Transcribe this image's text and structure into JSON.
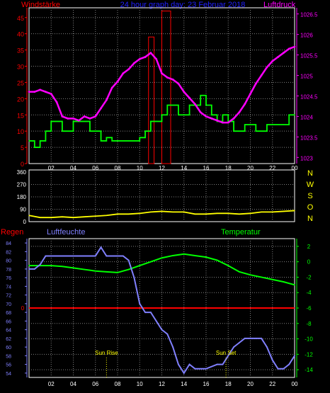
{
  "header": {
    "left_label": "Windstärke",
    "center_label": "24 hour graph day: 23 Februar 2018",
    "right_label": "Luftdruck"
  },
  "colors": {
    "grid": "#808080",
    "panel_border": "#ffffff",
    "pressure": "#ff00ff",
    "pressure_axis": "#ff00ff",
    "wind": "#00ff00",
    "wind_axis": "#ff0000",
    "gust_box": "#ff0000",
    "direction": "#ffff00",
    "humidity": "#8080ff",
    "temperature": "#00ff00",
    "rain": "#ff0000",
    "sun_marker": "#ffff00",
    "axis_text": "#ffffff"
  },
  "chart_data": [
    {
      "type": "line",
      "title": "24 hour graph day: 23 Februar 2018",
      "x_ticks": [
        "02",
        "04",
        "06",
        "08",
        "10",
        "12",
        "14",
        "16",
        "18",
        "20",
        "22",
        "00"
      ],
      "x_range_hours": [
        0,
        24
      ],
      "grid": true,
      "y_left": {
        "label": "Windstärke",
        "ticks": [
          "0",
          "5",
          "10",
          "15",
          "20",
          "25",
          "30",
          "35",
          "40",
          "45"
        ],
        "range": [
          0,
          48
        ]
      },
      "y_right": {
        "label": "Luftdruck",
        "ticks": [
          "1023",
          "1023.5",
          "1024",
          "1024.5",
          "1025",
          "1025.5",
          "1026",
          "1026.5"
        ],
        "range": [
          1022.85,
          1026.65
        ]
      },
      "series": [
        {
          "name": "Luftdruck",
          "axis": "right",
          "x": [
            0,
            0.5,
            1,
            1.5,
            2,
            2.5,
            3,
            3.5,
            4,
            4.5,
            5,
            5.5,
            6,
            6.5,
            7,
            7.5,
            8,
            8.5,
            9,
            9.5,
            10,
            10.5,
            11,
            11.5,
            12,
            12.5,
            13,
            13.5,
            14,
            14.5,
            15,
            15.5,
            16,
            16.5,
            17,
            17.5,
            18,
            18.5,
            19,
            19.5,
            20,
            20.5,
            21,
            21.5,
            22,
            22.5,
            23,
            23.5,
            24
          ],
          "values": [
            1024.6,
            1024.6,
            1024.65,
            1024.6,
            1024.55,
            1024.35,
            1024.0,
            1023.95,
            1023.95,
            1023.9,
            1024.0,
            1023.95,
            1024.0,
            1024.2,
            1024.4,
            1024.7,
            1024.85,
            1025.05,
            1025.15,
            1025.3,
            1025.4,
            1025.45,
            1025.55,
            1025.4,
            1025.05,
            1024.95,
            1024.9,
            1024.8,
            1024.6,
            1024.45,
            1024.3,
            1024.1,
            1024.0,
            1023.95,
            1023.9,
            1023.85,
            1023.85,
            1023.95,
            1024.1,
            1024.3,
            1024.55,
            1024.8,
            1025.0,
            1025.2,
            1025.35,
            1025.45,
            1025.55,
            1025.65,
            1025.7
          ]
        },
        {
          "name": "Windstärke",
          "axis": "left",
          "step": true,
          "x": [
            0,
            0.5,
            1,
            1.5,
            2,
            2.5,
            3,
            3.5,
            4,
            4.5,
            5,
            5.5,
            6,
            6.5,
            7,
            7.5,
            8,
            8.5,
            9,
            9.5,
            10,
            10.5,
            11,
            11.5,
            12,
            12.5,
            13,
            13.5,
            14,
            14.5,
            15,
            15.5,
            16,
            16.5,
            17,
            17.5,
            18,
            18.5,
            19,
            19.5,
            20,
            20.5,
            21,
            21.5,
            22,
            22.5,
            23,
            23.5,
            24
          ],
          "values": [
            7,
            5,
            7,
            10,
            13,
            13,
            10,
            10,
            13,
            13,
            13,
            10,
            10,
            7,
            8,
            7,
            7,
            7,
            7,
            7,
            8,
            10,
            13,
            13,
            15,
            18,
            18,
            15,
            15,
            18,
            18,
            21,
            18,
            15,
            13,
            15,
            13,
            10,
            10,
            12,
            12,
            10,
            10,
            12,
            12,
            12,
            12,
            15,
            15
          ]
        },
        {
          "name": "Böen",
          "axis": "left",
          "type": "bar",
          "x": [
            10.8,
            12.0
          ],
          "width_hours": [
            0.5,
            0.8
          ],
          "values": [
            39,
            47
          ]
        }
      ]
    },
    {
      "type": "line",
      "y_left": {
        "ticks": [
          "0",
          "90",
          "180",
          "270",
          "360"
        ],
        "range": [
          0,
          360
        ]
      },
      "y_right_labels": [
        "N",
        "W",
        "S",
        "O",
        "N"
      ],
      "x_ticks": [
        "02",
        "04",
        "06",
        "08",
        "10",
        "12",
        "14",
        "16",
        "18",
        "20",
        "22",
        "00"
      ],
      "grid": true,
      "series": [
        {
          "name": "Windrichtung",
          "x": [
            0,
            1,
            2,
            3,
            4,
            5,
            6,
            7,
            8,
            9,
            10,
            11,
            12,
            13,
            14,
            15,
            16,
            17,
            18,
            19,
            20,
            21,
            22,
            23,
            24
          ],
          "values": [
            45,
            30,
            30,
            35,
            30,
            35,
            40,
            45,
            55,
            55,
            60,
            70,
            75,
            70,
            70,
            55,
            55,
            60,
            60,
            55,
            60,
            70,
            70,
            75,
            80
          ]
        }
      ]
    },
    {
      "type": "line",
      "y_left": {
        "label": "Luftfeuchte",
        "ticks": [
          "54",
          "56",
          "58",
          "60",
          "62",
          "64",
          "66",
          "68",
          "70",
          "72",
          "74",
          "76",
          "78",
          "80",
          "82",
          "84"
        ],
        "range": [
          53,
          85
        ]
      },
      "y_right": {
        "label": "Temperatur",
        "ticks": [
          "2",
          "0",
          "-2",
          "-4",
          "-6",
          "-8",
          "-10",
          "-12",
          "-14"
        ],
        "range": [
          -15,
          3
        ]
      },
      "rain_label": "Regen",
      "rain_axis_value": "0",
      "x_ticks": [
        "02",
        "04",
        "06",
        "08",
        "10",
        "12",
        "14",
        "16",
        "18",
        "20",
        "22",
        "00"
      ],
      "grid": true,
      "annotations": [
        {
          "text": "Sun Rise",
          "x": 7.0
        },
        {
          "text": "Sun Set",
          "x": 17.8
        }
      ],
      "series": [
        {
          "name": "Luftfeuchte",
          "axis": "left",
          "x": [
            0,
            0.5,
            1,
            1.5,
            2,
            3,
            4,
            5,
            6,
            6.5,
            7,
            7.5,
            8,
            8.5,
            9,
            9.5,
            10,
            10.5,
            11,
            11.5,
            12,
            12.5,
            13,
            13.5,
            14,
            14.5,
            15,
            16,
            17,
            17.5,
            18,
            18.5,
            19,
            19.5,
            20,
            20.5,
            21,
            21.5,
            22,
            22.5,
            23,
            23.5,
            24
          ],
          "values": [
            78,
            78,
            79,
            81,
            81,
            81,
            81,
            81,
            81,
            83,
            81,
            81,
            81,
            81,
            80,
            76,
            70,
            68,
            68,
            66,
            64,
            63,
            60,
            56,
            54,
            56,
            55,
            55,
            56,
            56,
            58,
            60,
            61,
            62,
            62,
            62,
            62,
            60,
            57,
            55,
            55,
            56,
            58
          ]
        },
        {
          "name": "Temperatur",
          "axis": "right",
          "x": [
            0,
            1,
            2,
            3,
            4,
            5,
            6,
            7,
            8,
            9,
            10,
            11,
            12,
            13,
            14,
            15,
            16,
            17,
            18,
            19,
            20,
            21,
            22,
            23,
            24
          ],
          "values": [
            -0.5,
            -0.5,
            -0.5,
            -0.6,
            -0.8,
            -1.0,
            -1.2,
            -1.3,
            -1.4,
            -1.0,
            -0.5,
            0,
            0.5,
            0.8,
            1.0,
            0.8,
            0.6,
            0.2,
            -0.5,
            -1.3,
            -1.7,
            -2.0,
            -2.3,
            -2.6,
            -3.0
          ]
        },
        {
          "name": "Regen",
          "axis": "rain",
          "x": [
            0,
            24
          ],
          "values": [
            0,
            0
          ]
        }
      ]
    }
  ]
}
